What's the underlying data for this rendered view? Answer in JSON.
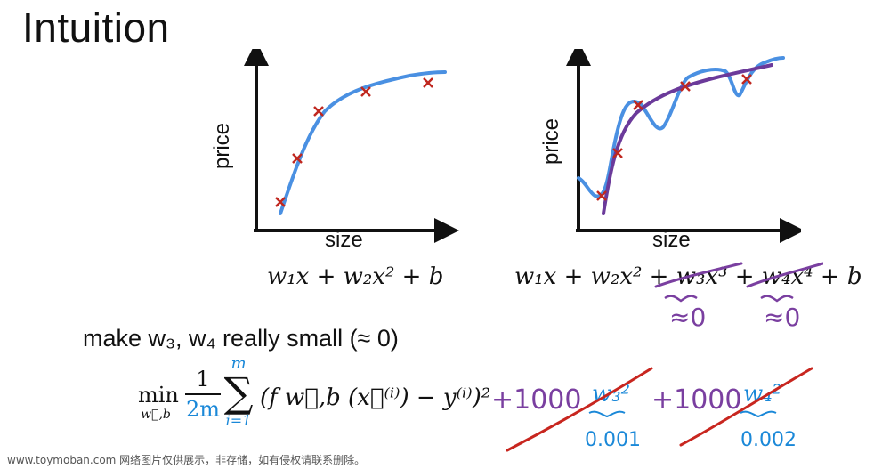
{
  "title": "Intuition",
  "left_plot": {
    "xlabel": "size",
    "ylabel": "price",
    "formula": "w₁x + w₂x² + b"
  },
  "right_plot": {
    "xlabel": "size",
    "ylabel": "price",
    "formula": "w₁x + w₂x² + w₃x³ + w₄x⁴ + b",
    "annotation_w3": "≈0",
    "annotation_w4": "≈0"
  },
  "note": "make w₃, w₄ really small (≈ 0)",
  "cost": {
    "min": "min",
    "min_sub": "w⃗,b",
    "one": "1",
    "two_m": "2m",
    "sum_top": "m",
    "sum_bottom": "i=1",
    "body": "(f w⃗,b (x⃗⁽ⁱ⁾) − y⁽ⁱ⁾)²",
    "term1_coef": "+1000",
    "term1_var": "w₃²",
    "term1_value": "0.001",
    "term2_coef": "+1000",
    "term2_var": "w₄²",
    "term2_value": "0.002"
  },
  "colors": {
    "axis": "#111111",
    "marker": "#c0271f",
    "fit_blue": "#4a90e2",
    "fit_purple": "#6b3a9a",
    "ink_purple": "#7a3fa0",
    "ink_blue": "#1a88d8",
    "ink_red": "#c8261f"
  },
  "watermark": "www.toymoban.com 网络图片仅供展示，非存储，如有侵权请联系删除。"
}
